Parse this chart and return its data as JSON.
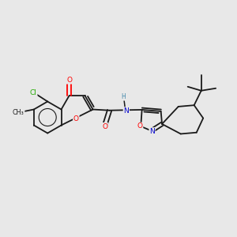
{
  "background_color": "#e8e8e8",
  "bond_color": "#1a1a1a",
  "atom_colors": {
    "O": "#ff0000",
    "N": "#0000cc",
    "Cl": "#22aa00",
    "C": "#1a1a1a",
    "H": "#4488aa"
  },
  "figsize": [
    3.0,
    3.0
  ],
  "dpi": 100
}
